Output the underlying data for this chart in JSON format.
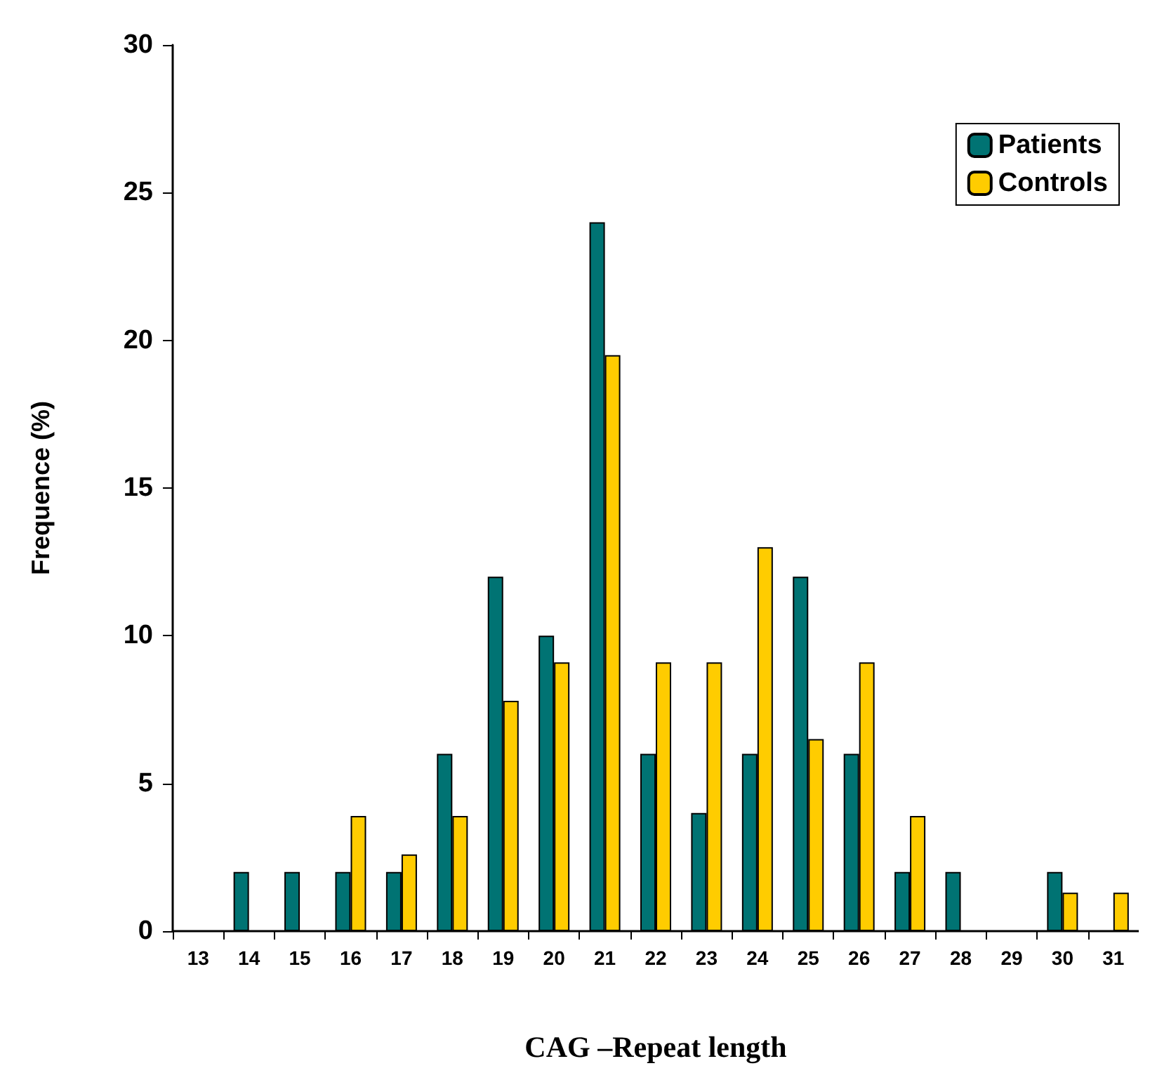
{
  "chart_data": {
    "type": "bar",
    "xlabel": "CAG –Repeat length",
    "ylabel": "Frequence (%)",
    "categories": [
      "13",
      "14",
      "15",
      "16",
      "17",
      "18",
      "19",
      "20",
      "21",
      "22",
      "23",
      "24",
      "25",
      "26",
      "27",
      "28",
      "29",
      "30",
      "31"
    ],
    "series": [
      {
        "name": "Patients",
        "color": "#007373",
        "values": [
          0,
          2,
          2,
          2,
          2,
          6,
          12,
          10,
          24,
          6,
          4,
          6,
          12,
          6,
          2,
          2,
          0,
          2,
          0
        ]
      },
      {
        "name": "Controls",
        "color": "#ffcc00",
        "values": [
          0,
          0,
          0,
          3.9,
          2.6,
          3.9,
          7.8,
          9.1,
          19.5,
          9.1,
          9.1,
          13,
          6.5,
          9.1,
          3.9,
          0,
          0,
          1.3,
          1.3
        ]
      }
    ],
    "ylim": [
      0,
      30
    ],
    "yticks": [
      0,
      5,
      10,
      15,
      20,
      25,
      30
    ],
    "grid": false,
    "legend": "top right"
  }
}
